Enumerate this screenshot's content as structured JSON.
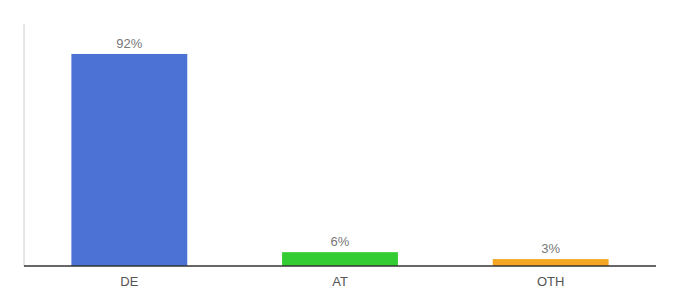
{
  "chart_data": {
    "type": "bar",
    "categories": [
      "DE",
      "AT",
      "OTH"
    ],
    "values": [
      92,
      6,
      3
    ],
    "value_labels": [
      "92%",
      "6%",
      "3%"
    ],
    "colors": [
      "#4C72D5",
      "#33cc33",
      "#f5a623"
    ],
    "ylim": [
      0,
      105
    ],
    "data_labels": true,
    "tick_labels": "x"
  }
}
